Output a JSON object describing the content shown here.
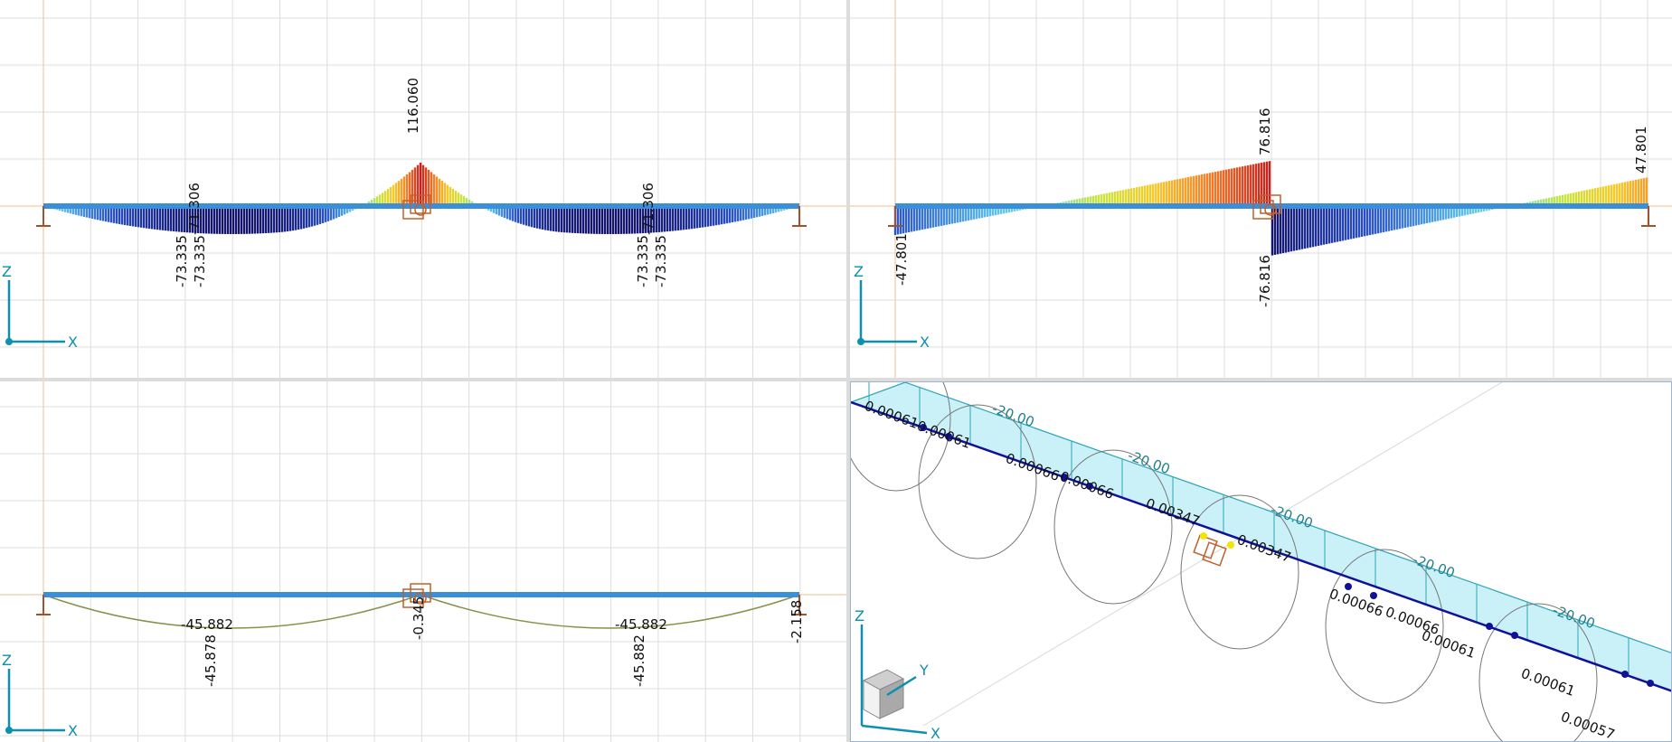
{
  "axis_labels": {
    "z": "Z",
    "x": "X",
    "y": "Y"
  },
  "moment_view": {
    "labels": [
      "116.060",
      "-73.335",
      "-73.335",
      "-71.306",
      "-73.335",
      "-73.335",
      "-71.306"
    ]
  },
  "shear_view": {
    "labels": [
      "76.816",
      "-76.816",
      "47.801",
      "-47.801"
    ]
  },
  "deflection_view": {
    "labels": [
      "-45.882",
      "-45.878",
      "-0.345",
      "-45.882",
      "-45.882",
      "-2.158"
    ]
  },
  "iso_view": {
    "load_labels": [
      "-20.00",
      "-20.00",
      "-20.00",
      "-20.00",
      "-20.00"
    ],
    "value_labels": [
      "0.00061",
      "0.00061",
      "0.00066",
      "0.00066",
      "0.00347",
      "0.00347",
      "0.00066",
      "0.00066",
      "0.00061",
      "0.00061",
      "0.00057"
    ]
  },
  "colors": {
    "beam": "#3a8fd8",
    "support": "#a0522d",
    "grid": "#d9d9d9",
    "axis_origin": "#f3c9a0",
    "triad": "#0d8fae",
    "load_fill": "#c9f1f7",
    "deflection_line": "#8a8f4a"
  }
}
